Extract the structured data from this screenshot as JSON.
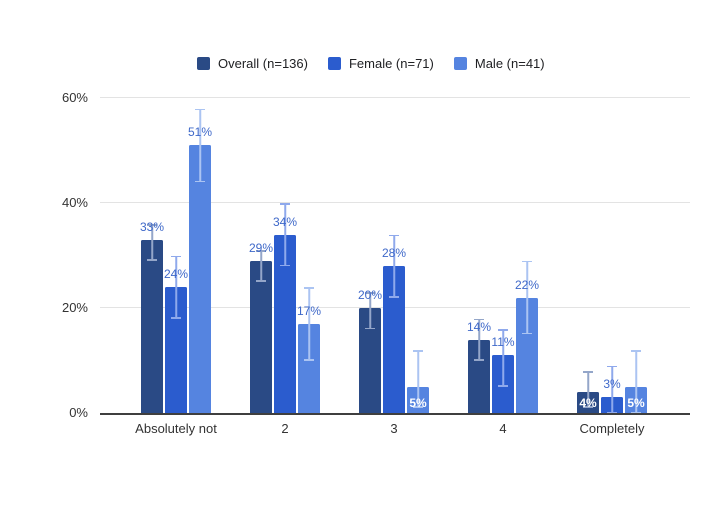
{
  "chart_data": {
    "type": "bar",
    "title": "",
    "categories": [
      "Absolutely not",
      "2",
      "3",
      "4",
      "Completely"
    ],
    "series": [
      {
        "name": "Overall (n=136)",
        "color": "#2a4a85",
        "error_color": "#94a6c9",
        "values": [
          33,
          29,
          20,
          14,
          4
        ],
        "labels": [
          "33%",
          "29%",
          "20%",
          "14%",
          "4%"
        ],
        "error_low": [
          29,
          25,
          16,
          10,
          1
        ],
        "error_high": [
          36,
          31,
          23,
          18,
          8
        ],
        "label_inside": [
          false,
          false,
          false,
          false,
          true
        ]
      },
      {
        "name": "Female (n=71)",
        "color": "#2b5cce",
        "error_color": "#8fa9ec",
        "values": [
          24,
          34,
          28,
          11,
          3
        ],
        "labels": [
          "24%",
          "34%",
          "28%",
          "11%",
          "3%"
        ],
        "error_low": [
          18,
          28,
          22,
          5,
          0
        ],
        "error_high": [
          30,
          40,
          34,
          16,
          9
        ],
        "label_inside": [
          false,
          false,
          false,
          false,
          false
        ]
      },
      {
        "name": "Male (n=41)",
        "color": "#5584e0",
        "error_color": "#abc4f2",
        "values": [
          51,
          17,
          5,
          22,
          5
        ],
        "labels": [
          "51%",
          "17%",
          "5%",
          "22%",
          "5%"
        ],
        "error_low": [
          44,
          10,
          1,
          15,
          0
        ],
        "error_high": [
          58,
          24,
          12,
          29,
          12
        ],
        "label_inside": [
          false,
          false,
          true,
          false,
          true
        ]
      }
    ],
    "y_ticks": [
      {
        "value": 0,
        "label": "0%"
      },
      {
        "value": 20,
        "label": "20%"
      },
      {
        "value": 40,
        "label": "40%"
      },
      {
        "value": 60,
        "label": "60%"
      }
    ],
    "ylim": [
      0,
      60
    ],
    "grid": true,
    "legend_position": "top",
    "value_suffix": "%",
    "outside_label_color": "#3e68c9",
    "inside_label_color": "#ffffff",
    "grid_color": "#e3e3e3",
    "axis_line_color": "#3f3f3f",
    "tick_label_color": "#333333"
  }
}
